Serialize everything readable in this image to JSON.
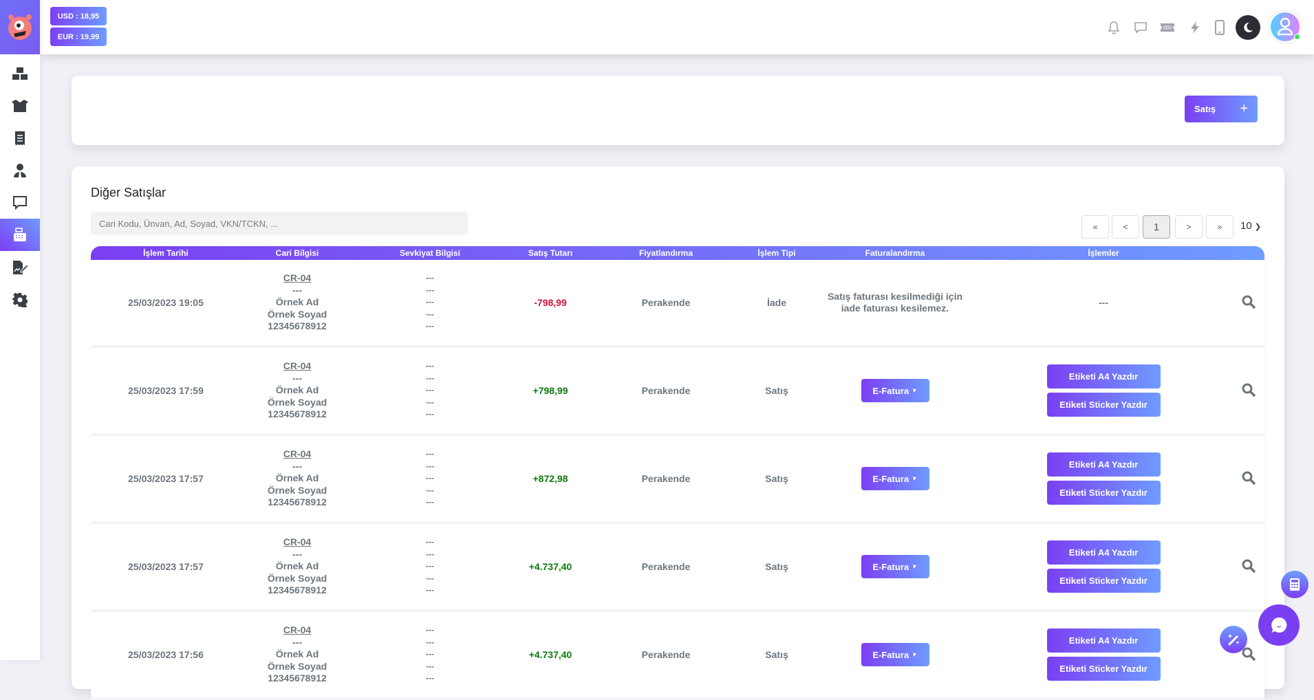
{
  "header": {
    "rates": [
      {
        "label": "USD : 18,95"
      },
      {
        "label": "EUR : 19,99"
      }
    ],
    "icons": [
      "bell-icon",
      "chat-icon",
      "ticket-icon",
      "bolt-icon",
      "mobile-icon",
      "moon-icon",
      "avatar"
    ]
  },
  "sidebar": {
    "items": [
      {
        "icon": "boxes-icon"
      },
      {
        "icon": "open-box-icon"
      },
      {
        "icon": "receipt-icon"
      },
      {
        "icon": "user-tie-icon"
      },
      {
        "icon": "message-icon"
      },
      {
        "icon": "cash-register-icon",
        "active": true
      },
      {
        "icon": "signature-icon"
      },
      {
        "icon": "gear-icon"
      }
    ]
  },
  "top_card": {
    "sale_button": "Satış",
    "sale_button_icon": "+"
  },
  "main": {
    "title": "Diğer Satışlar",
    "search_placeholder": "Cari Kodu, Ünvan, Ad, Soyad, VKN/TCKN, ...",
    "pagination": {
      "first": "«",
      "prev": "<",
      "current": "1",
      "next": ">",
      "last": "»",
      "per_page": "10"
    },
    "columns": [
      "İşlem Tarihi",
      "Cari Bilgisi",
      "Sevkiyat Bilgisi",
      "Satış Tutarı",
      "Fiyatlandırma",
      "İşlem Tipi",
      "Faturalandırma",
      "İşlemler"
    ],
    "rows": [
      {
        "date": "25/03/2023 19:05",
        "code": "CR-04",
        "title": "---",
        "name": "Örnek Ad",
        "surname": "Örnek Soyad",
        "vkn": "12345678912",
        "shipping": [
          "---",
          "---",
          "---",
          "---",
          "---"
        ],
        "amount": "-798,99",
        "amount_sign": "neg",
        "pricing": "Perakende",
        "type": "İade",
        "invoice_text": "Satış faturası kesilmediği için iade faturası kesilemez.",
        "ops_text": "---"
      },
      {
        "date": "25/03/2023 17:59",
        "code": "CR-04",
        "title": "---",
        "name": "Örnek Ad",
        "surname": "Örnek Soyad",
        "vkn": "12345678912",
        "shipping": [
          "---",
          "---",
          "---",
          "---",
          "---"
        ],
        "amount": "+798,99",
        "amount_sign": "pos",
        "pricing": "Perakende",
        "type": "Satış",
        "invoice_button": "E-Fatura",
        "a4": "Etiketi A4 Yazdır",
        "sticker": "Etiketi Sticker Yazdır"
      },
      {
        "date": "25/03/2023 17:57",
        "code": "CR-04",
        "title": "---",
        "name": "Örnek Ad",
        "surname": "Örnek Soyad",
        "vkn": "12345678912",
        "shipping": [
          "---",
          "---",
          "---",
          "---",
          "---"
        ],
        "amount": "+872,98",
        "amount_sign": "pos",
        "pricing": "Perakende",
        "type": "Satış",
        "invoice_button": "E-Fatura",
        "a4": "Etiketi A4 Yazdır",
        "sticker": "Etiketi Sticker Yazdır"
      },
      {
        "date": "25/03/2023 17:57",
        "code": "CR-04",
        "title": "---",
        "name": "Örnek Ad",
        "surname": "Örnek Soyad",
        "vkn": "12345678912",
        "shipping": [
          "---",
          "---",
          "---",
          "---",
          "---"
        ],
        "amount": "+4.737,40",
        "amount_sign": "pos",
        "pricing": "Perakende",
        "type": "Satış",
        "invoice_button": "E-Fatura",
        "a4": "Etiketi A4 Yazdır",
        "sticker": "Etiketi Sticker Yazdır"
      },
      {
        "date": "25/03/2023 17:56",
        "code": "CR-04",
        "title": "---",
        "name": "Örnek Ad",
        "surname": "Örnek Soyad",
        "vkn": "12345678912",
        "shipping": [
          "---",
          "---",
          "---",
          "---",
          "---"
        ],
        "amount": "+4.737,40",
        "amount_sign": "pos",
        "pricing": "Perakende",
        "type": "Satış",
        "invoice_button": "E-Fatura",
        "a4": "Etiketi A4 Yazdır",
        "sticker": "Etiketi Sticker Yazdır"
      }
    ]
  },
  "colors": {
    "accent_start": "#7b3ff2",
    "accent_end": "#6f9cff",
    "negative": "#d0103a",
    "positive": "#0a7a0a"
  }
}
